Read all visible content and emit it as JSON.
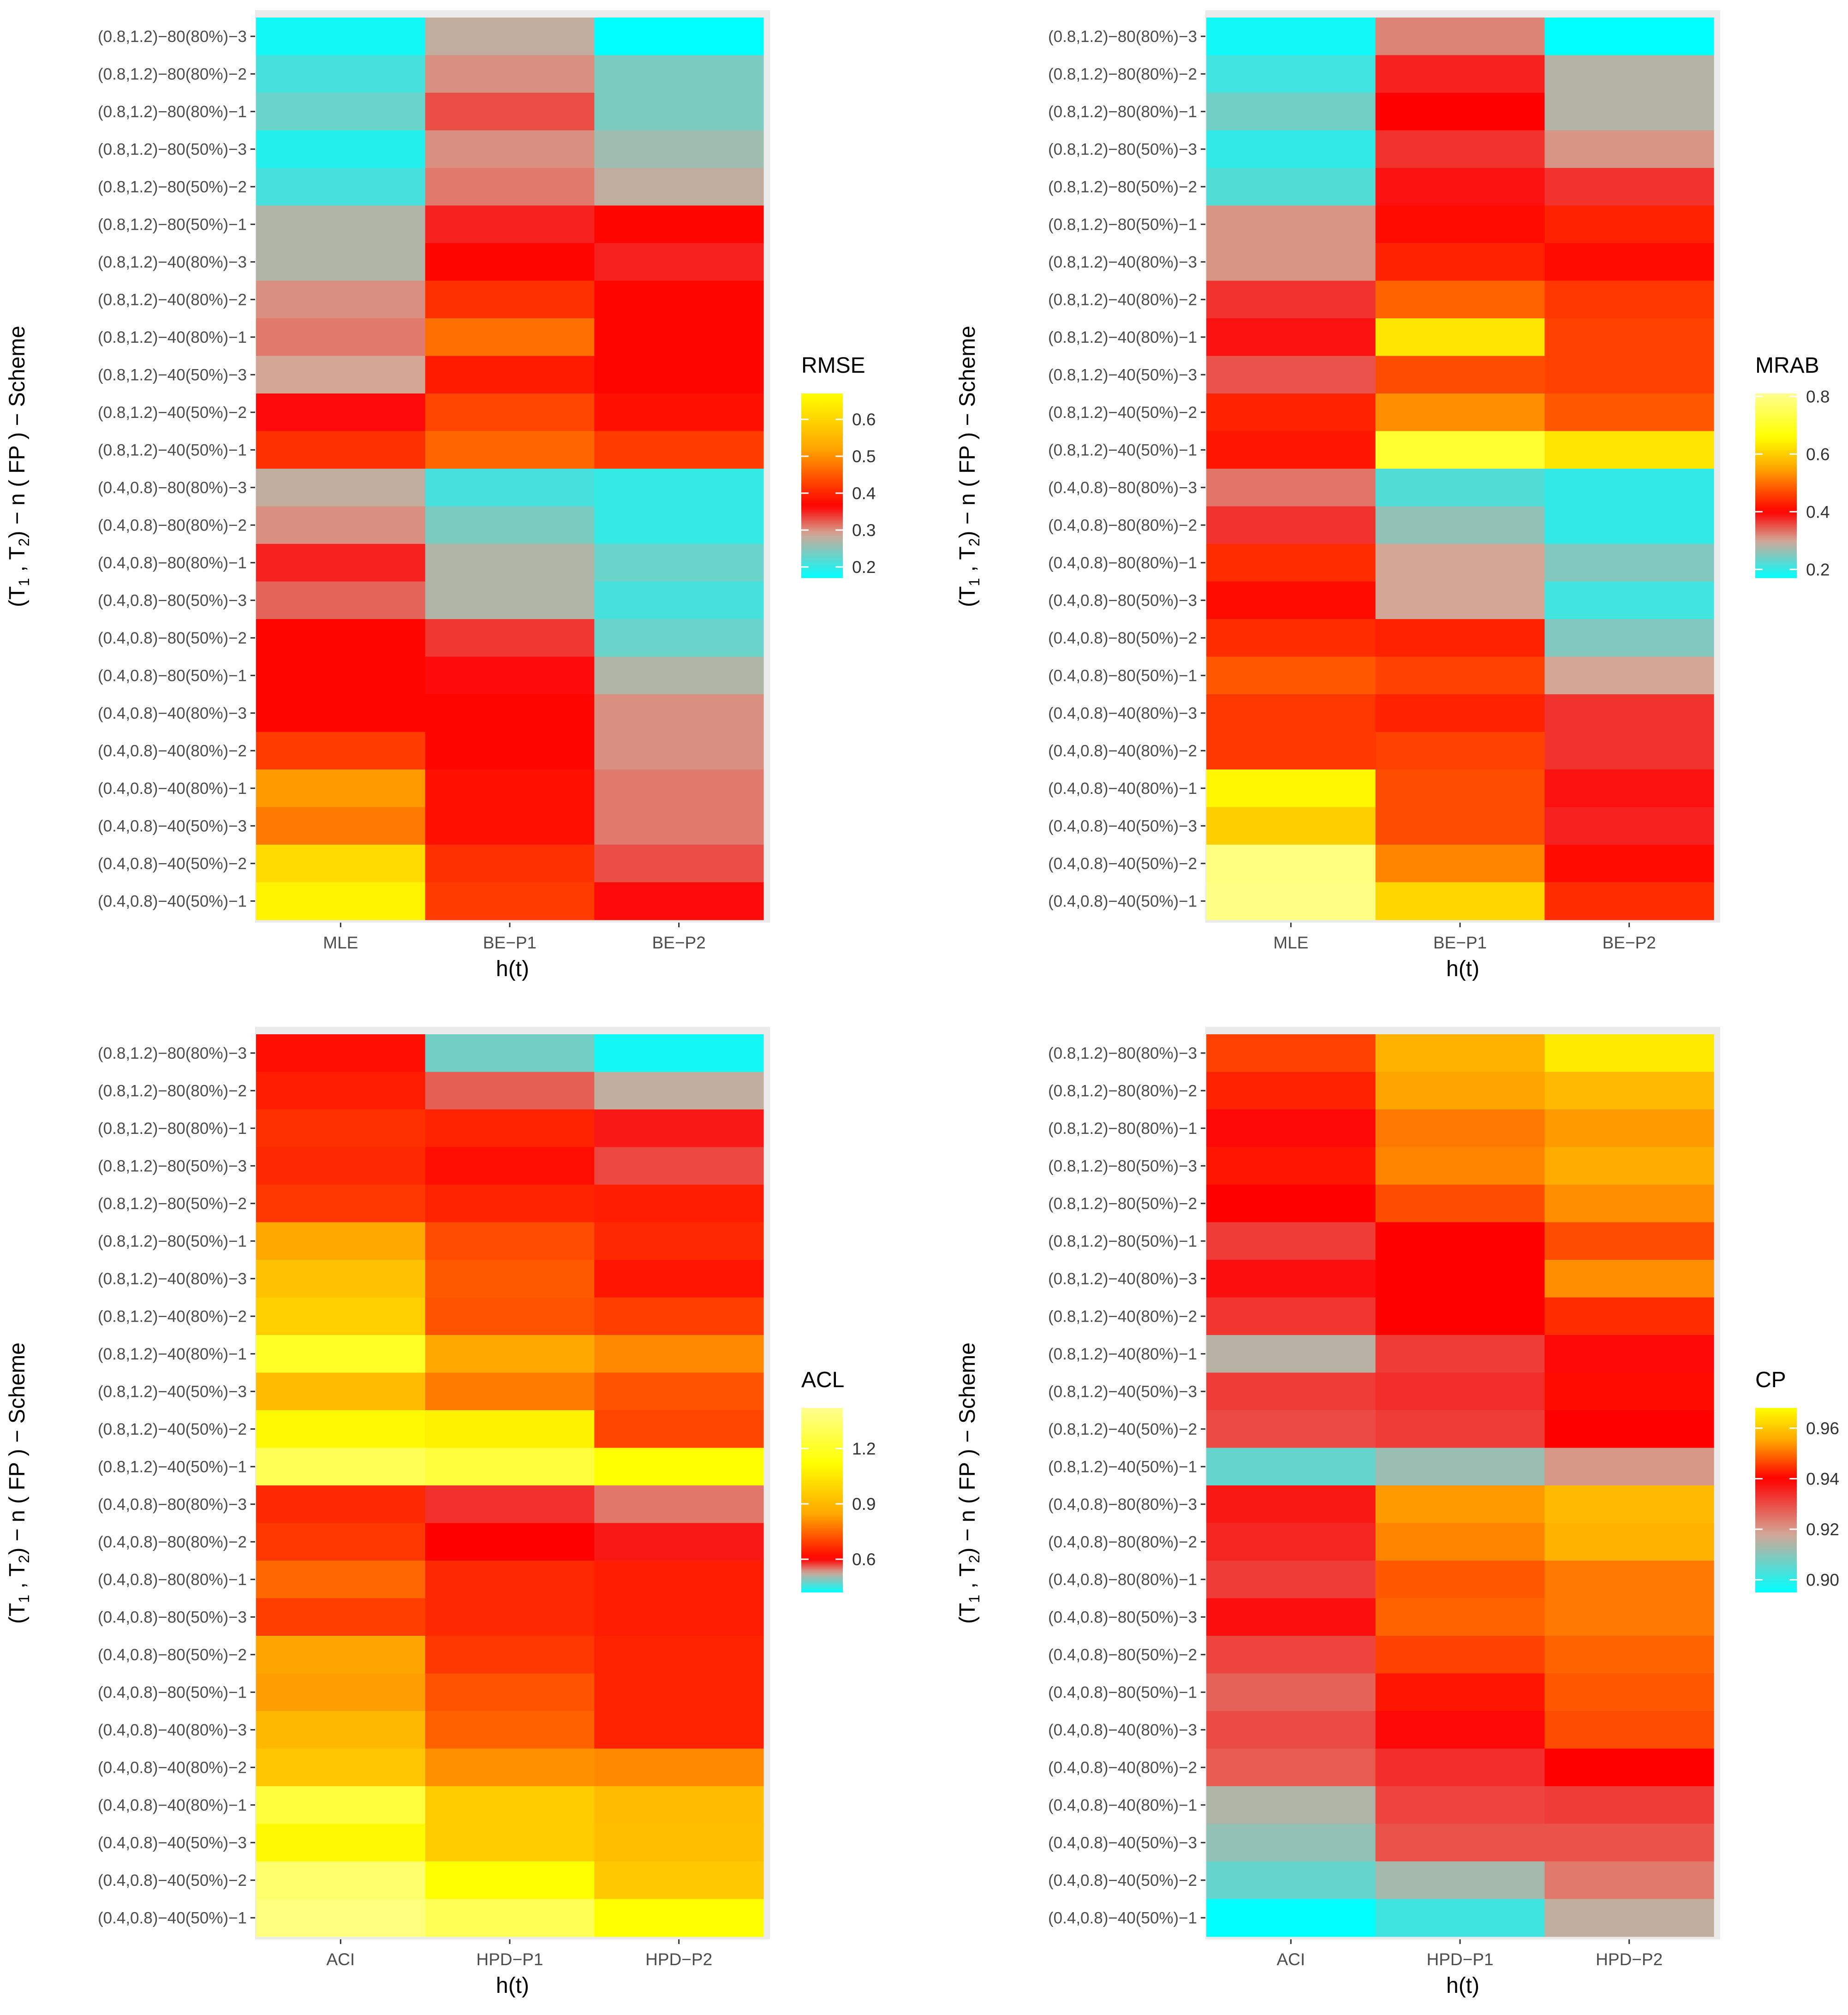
{
  "chart_data": [
    {
      "type": "heatmap",
      "legend_title": "RMSE",
      "xlabel": "h(t)",
      "ylabel": "(T1, T2) − n ( FP ) − Scheme",
      "x_categories": [
        "MLE",
        "BE−P1",
        "BE−P2"
      ],
      "y_categories": [
        "(0.8,1.2)−80(80%)−3",
        "(0.8,1.2)−80(80%)−2",
        "(0.8,1.2)−80(80%)−1",
        "(0.8,1.2)−80(50%)−3",
        "(0.8,1.2)−80(50%)−2",
        "(0.8,1.2)−80(50%)−1",
        "(0.8,1.2)−40(80%)−3",
        "(0.8,1.2)−40(80%)−2",
        "(0.8,1.2)−40(80%)−1",
        "(0.8,1.2)−40(50%)−3",
        "(0.8,1.2)−40(50%)−2",
        "(0.8,1.2)−40(50%)−1",
        "(0.4,0.8)−80(80%)−3",
        "(0.4,0.8)−80(80%)−2",
        "(0.4,0.8)−80(80%)−1",
        "(0.4,0.8)−80(50%)−3",
        "(0.4,0.8)−80(50%)−2",
        "(0.4,0.8)−80(50%)−1",
        "(0.4,0.8)−40(80%)−3",
        "(0.4,0.8)−40(80%)−2",
        "(0.4,0.8)−40(80%)−1",
        "(0.4,0.8)−40(50%)−3",
        "(0.4,0.8)−40(50%)−2",
        "(0.4,0.8)−40(50%)−1"
      ],
      "values": [
        [
          0.18,
          0.28,
          0.17
        ],
        [
          0.21,
          0.3,
          0.24
        ],
        [
          0.23,
          0.33,
          0.24
        ],
        [
          0.19,
          0.3,
          0.26
        ],
        [
          0.21,
          0.31,
          0.28
        ],
        [
          0.27,
          0.35,
          0.37
        ],
        [
          0.27,
          0.37,
          0.35
        ],
        [
          0.3,
          0.41,
          0.37
        ],
        [
          0.31,
          0.47,
          0.37
        ],
        [
          0.29,
          0.39,
          0.37
        ],
        [
          0.36,
          0.43,
          0.38
        ],
        [
          0.41,
          0.46,
          0.42
        ],
        [
          0.28,
          0.21,
          0.2
        ],
        [
          0.3,
          0.24,
          0.2
        ],
        [
          0.35,
          0.27,
          0.23
        ],
        [
          0.32,
          0.27,
          0.21
        ],
        [
          0.37,
          0.34,
          0.23
        ],
        [
          0.37,
          0.36,
          0.27
        ],
        [
          0.37,
          0.37,
          0.3
        ],
        [
          0.42,
          0.37,
          0.3
        ],
        [
          0.51,
          0.38,
          0.31
        ],
        [
          0.48,
          0.38,
          0.31
        ],
        [
          0.61,
          0.41,
          0.33
        ],
        [
          0.65,
          0.42,
          0.36
        ]
      ],
      "colorbar_ticks": [
        0.2,
        0.3,
        0.4,
        0.5,
        0.6
      ],
      "colorbar_range": [
        0.17,
        0.67
      ],
      "colorbar_stops": [
        {
          "v": 0.17,
          "c": "#00ffff"
        },
        {
          "v": 0.29,
          "c": "#d3a695"
        },
        {
          "v": 0.365,
          "c": "#ff0000"
        },
        {
          "v": 0.52,
          "c": "#ffa500"
        },
        {
          "v": 0.67,
          "c": "#ffff00"
        }
      ]
    },
    {
      "type": "heatmap",
      "legend_title": "MRAB",
      "xlabel": "h(t)",
      "ylabel": "(T1, T2) − n ( FP ) − Scheme",
      "x_categories": [
        "MLE",
        "BE−P1",
        "BE−P2"
      ],
      "y_categories": [
        "(0.8,1.2)−80(80%)−3",
        "(0.8,1.2)−80(80%)−2",
        "(0.8,1.2)−80(80%)−1",
        "(0.8,1.2)−80(50%)−3",
        "(0.8,1.2)−80(50%)−2",
        "(0.8,1.2)−80(50%)−1",
        "(0.8,1.2)−40(80%)−3",
        "(0.8,1.2)−40(80%)−2",
        "(0.8,1.2)−40(80%)−1",
        "(0.8,1.2)−40(50%)−3",
        "(0.8,1.2)−40(50%)−2",
        "(0.8,1.2)−40(50%)−1",
        "(0.4,0.8)−80(80%)−3",
        "(0.4,0.8)−80(80%)−2",
        "(0.4,0.8)−80(80%)−1",
        "(0.4,0.8)−80(50%)−3",
        "(0.4,0.8)−80(50%)−2",
        "(0.4,0.8)−80(50%)−1",
        "(0.4,0.8)−40(80%)−3",
        "(0.4,0.8)−40(80%)−2",
        "(0.4,0.8)−40(80%)−1",
        "(0.4,0.8)−40(50%)−3",
        "(0.4,0.8)−40(50%)−2",
        "(0.4,0.8)−40(50%)−1"
      ],
      "values": [
        [
          0.18,
          0.32,
          0.17
        ],
        [
          0.21,
          0.38,
          0.28
        ],
        [
          0.24,
          0.4,
          0.28
        ],
        [
          0.2,
          0.37,
          0.31
        ],
        [
          0.22,
          0.39,
          0.37
        ],
        [
          0.31,
          0.41,
          0.43
        ],
        [
          0.31,
          0.43,
          0.41
        ],
        [
          0.37,
          0.49,
          0.45
        ],
        [
          0.39,
          0.63,
          0.46
        ],
        [
          0.35,
          0.47,
          0.46
        ],
        [
          0.43,
          0.53,
          0.48
        ],
        [
          0.42,
          0.71,
          0.63
        ],
        [
          0.33,
          0.22,
          0.2
        ],
        [
          0.37,
          0.26,
          0.2
        ],
        [
          0.44,
          0.3,
          0.25
        ],
        [
          0.41,
          0.3,
          0.21
        ],
        [
          0.44,
          0.43,
          0.25
        ],
        [
          0.48,
          0.46,
          0.3
        ],
        [
          0.45,
          0.43,
          0.37
        ],
        [
          0.45,
          0.46,
          0.37
        ],
        [
          0.65,
          0.47,
          0.39
        ],
        [
          0.6,
          0.47,
          0.38
        ],
        [
          0.79,
          0.52,
          0.41
        ],
        [
          0.8,
          0.61,
          0.44
        ]
      ],
      "colorbar_ticks": [
        0.2,
        0.4,
        0.6,
        0.8
      ],
      "colorbar_range": [
        0.17,
        0.81
      ],
      "colorbar_stops": [
        {
          "v": 0.17,
          "c": "#00ffff"
        },
        {
          "v": 0.3,
          "c": "#d3a695"
        },
        {
          "v": 0.4,
          "c": "#ff0000"
        },
        {
          "v": 0.55,
          "c": "#ffa500"
        },
        {
          "v": 0.66,
          "c": "#ffff00"
        },
        {
          "v": 0.81,
          "c": "#ffff90"
        }
      ]
    },
    {
      "type": "heatmap",
      "legend_title": "ACL",
      "xlabel": "h(t)",
      "ylabel": "(T1, T2) − n ( FP ) − Scheme",
      "x_categories": [
        "ACI",
        "HPD−P1",
        "HPD−P2"
      ],
      "y_categories": [
        "(0.8,1.2)−80(80%)−3",
        "(0.8,1.2)−80(80%)−2",
        "(0.8,1.2)−80(80%)−1",
        "(0.8,1.2)−80(50%)−3",
        "(0.8,1.2)−80(50%)−2",
        "(0.8,1.2)−80(50%)−1",
        "(0.8,1.2)−40(80%)−3",
        "(0.8,1.2)−40(80%)−2",
        "(0.8,1.2)−40(80%)−1",
        "(0.8,1.2)−40(50%)−3",
        "(0.8,1.2)−40(50%)−2",
        "(0.8,1.2)−40(50%)−1",
        "(0.4,0.8)−80(80%)−3",
        "(0.4,0.8)−80(80%)−2",
        "(0.4,0.8)−80(80%)−1",
        "(0.4,0.8)−80(50%)−3",
        "(0.4,0.8)−80(50%)−2",
        "(0.4,0.8)−80(50%)−1",
        "(0.4,0.8)−40(80%)−3",
        "(0.4,0.8)−40(80%)−2",
        "(0.4,0.8)−40(80%)−1",
        "(0.4,0.8)−40(50%)−3",
        "(0.4,0.8)−40(50%)−2",
        "(0.4,0.8)−40(50%)−1"
      ],
      "values": [
        [
          0.62,
          0.48,
          0.43
        ],
        [
          0.64,
          0.56,
          0.52
        ],
        [
          0.67,
          0.65,
          0.59
        ],
        [
          0.66,
          0.62,
          0.57
        ],
        [
          0.68,
          0.65,
          0.64
        ],
        [
          0.85,
          0.71,
          0.66
        ],
        [
          0.93,
          0.73,
          0.63
        ],
        [
          0.97,
          0.72,
          0.69
        ],
        [
          1.2,
          0.85,
          0.8
        ],
        [
          0.91,
          0.78,
          0.72
        ],
        [
          1.1,
          1.08,
          0.7
        ],
        [
          1.3,
          1.25,
          1.12
        ],
        [
          0.66,
          0.58,
          0.55
        ],
        [
          0.68,
          0.6,
          0.59
        ],
        [
          0.75,
          0.66,
          0.64
        ],
        [
          0.69,
          0.66,
          0.64
        ],
        [
          0.84,
          0.68,
          0.65
        ],
        [
          0.83,
          0.72,
          0.65
        ],
        [
          0.9,
          0.74,
          0.65
        ],
        [
          0.94,
          0.81,
          0.8
        ],
        [
          1.25,
          0.96,
          0.91
        ],
        [
          1.1,
          0.96,
          0.92
        ],
        [
          1.35,
          1.12,
          0.95
        ],
        [
          1.38,
          1.3,
          1.12
        ]
      ],
      "colorbar_ticks": [
        0.6,
        0.9,
        1.2
      ],
      "colorbar_range": [
        0.42,
        1.42
      ],
      "colorbar_stops": [
        {
          "v": 0.42,
          "c": "#00ffff"
        },
        {
          "v": 0.53,
          "c": "#d3a695"
        },
        {
          "v": 0.6,
          "c": "#ff0000"
        },
        {
          "v": 0.84,
          "c": "#ffa500"
        },
        {
          "v": 1.12,
          "c": "#ffff00"
        },
        {
          "v": 1.42,
          "c": "#ffff90"
        }
      ]
    },
    {
      "type": "heatmap",
      "legend_title": "CP",
      "xlabel": "h(t)",
      "ylabel": "(T1, T2) − n ( FP ) − Scheme",
      "x_categories": [
        "ACI",
        "HPD−P1",
        "HPD−P2"
      ],
      "y_categories": [
        "(0.8,1.2)−80(80%)−3",
        "(0.8,1.2)−80(80%)−2",
        "(0.8,1.2)−80(80%)−1",
        "(0.8,1.2)−80(50%)−3",
        "(0.8,1.2)−80(50%)−2",
        "(0.8,1.2)−80(50%)−1",
        "(0.8,1.2)−40(80%)−3",
        "(0.8,1.2)−40(80%)−2",
        "(0.8,1.2)−40(80%)−1",
        "(0.8,1.2)−40(50%)−3",
        "(0.8,1.2)−40(50%)−2",
        "(0.8,1.2)−40(50%)−1",
        "(0.4,0.8)−80(80%)−3",
        "(0.4,0.8)−80(80%)−2",
        "(0.4,0.8)−80(80%)−1",
        "(0.4,0.8)−80(50%)−3",
        "(0.4,0.8)−80(50%)−2",
        "(0.4,0.8)−80(50%)−1",
        "(0.4,0.8)−40(80%)−3",
        "(0.4,0.8)−40(80%)−2",
        "(0.4,0.8)−40(80%)−1",
        "(0.4,0.8)−40(50%)−3",
        "(0.4,0.8)−40(50%)−2",
        "(0.4,0.8)−40(50%)−1"
      ],
      "values": [
        [
          0.946,
          0.957,
          0.965
        ],
        [
          0.943,
          0.955,
          0.958
        ],
        [
          0.939,
          0.951,
          0.954
        ],
        [
          0.942,
          0.952,
          0.956
        ],
        [
          0.94,
          0.947,
          0.953
        ],
        [
          0.932,
          0.94,
          0.947
        ],
        [
          0.938,
          0.94,
          0.953
        ],
        [
          0.933,
          0.94,
          0.944
        ],
        [
          0.915,
          0.932,
          0.939
        ],
        [
          0.932,
          0.934,
          0.941
        ],
        [
          0.93,
          0.932,
          0.94
        ],
        [
          0.906,
          0.912,
          0.92
        ],
        [
          0.937,
          0.954,
          0.958
        ],
        [
          0.935,
          0.952,
          0.957
        ],
        [
          0.932,
          0.948,
          0.951
        ],
        [
          0.938,
          0.949,
          0.951
        ],
        [
          0.931,
          0.946,
          0.949
        ],
        [
          0.927,
          0.942,
          0.948
        ],
        [
          0.93,
          0.939,
          0.947
        ],
        [
          0.928,
          0.934,
          0.94
        ],
        [
          0.914,
          0.931,
          0.932
        ],
        [
          0.911,
          0.929,
          0.929
        ],
        [
          0.906,
          0.913,
          0.924
        ],
        [
          0.895,
          0.902,
          0.916
        ]
      ],
      "colorbar_ticks": [
        0.9,
        0.92,
        0.94,
        0.96
      ],
      "colorbar_range": [
        0.895,
        0.968
      ],
      "colorbar_stops": [
        {
          "v": 0.895,
          "c": "#00ffff"
        },
        {
          "v": 0.918,
          "c": "#d3a695"
        },
        {
          "v": 0.94,
          "c": "#ff0000"
        },
        {
          "v": 0.955,
          "c": "#ffa500"
        },
        {
          "v": 0.968,
          "c": "#ffff00"
        }
      ]
    }
  ]
}
